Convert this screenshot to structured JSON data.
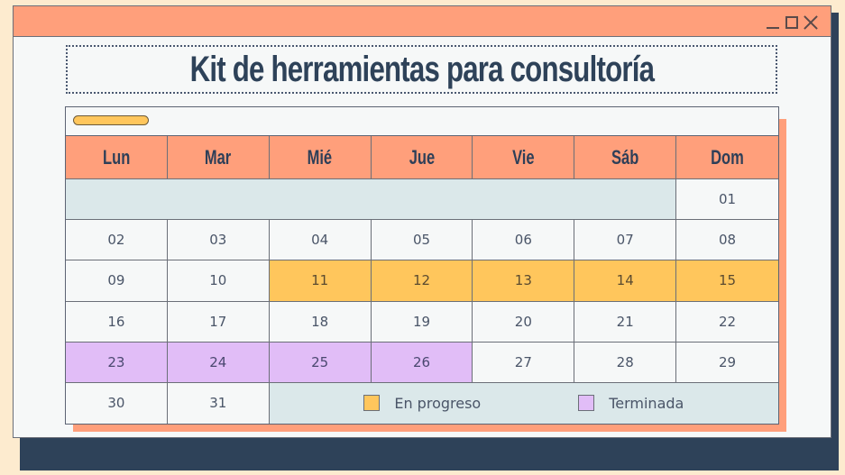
{
  "window": {
    "controls": {
      "minimize": "minimize",
      "maximize": "maximize",
      "close": "close"
    }
  },
  "title": "Kit de herramientas para consultoría",
  "calendar": {
    "headers": [
      "Lun",
      "Mar",
      "Mié",
      "Jue",
      "Vie",
      "Sáb",
      "Dom"
    ],
    "weeks": [
      [
        {
          "v": "",
          "s": "blank"
        },
        {
          "v": "",
          "s": "blank"
        },
        {
          "v": "",
          "s": "blank"
        },
        {
          "v": "",
          "s": "blank"
        },
        {
          "v": "",
          "s": "blank"
        },
        {
          "v": "",
          "s": "blank"
        },
        {
          "v": "01",
          "s": ""
        }
      ],
      [
        {
          "v": "02",
          "s": ""
        },
        {
          "v": "03",
          "s": ""
        },
        {
          "v": "04",
          "s": ""
        },
        {
          "v": "05",
          "s": ""
        },
        {
          "v": "06",
          "s": ""
        },
        {
          "v": "07",
          "s": ""
        },
        {
          "v": "08",
          "s": ""
        }
      ],
      [
        {
          "v": "09",
          "s": ""
        },
        {
          "v": "10",
          "s": ""
        },
        {
          "v": "11",
          "s": "progress"
        },
        {
          "v": "12",
          "s": "progress"
        },
        {
          "v": "13",
          "s": "progress"
        },
        {
          "v": "14",
          "s": "progress"
        },
        {
          "v": "15",
          "s": "progress"
        }
      ],
      [
        {
          "v": "16",
          "s": ""
        },
        {
          "v": "17",
          "s": ""
        },
        {
          "v": "18",
          "s": ""
        },
        {
          "v": "19",
          "s": ""
        },
        {
          "v": "20",
          "s": ""
        },
        {
          "v": "21",
          "s": ""
        },
        {
          "v": "22",
          "s": ""
        }
      ],
      [
        {
          "v": "23",
          "s": "done"
        },
        {
          "v": "24",
          "s": "done"
        },
        {
          "v": "25",
          "s": "done"
        },
        {
          "v": "26",
          "s": "done"
        },
        {
          "v": "27",
          "s": ""
        },
        {
          "v": "28",
          "s": ""
        },
        {
          "v": "29",
          "s": ""
        }
      ],
      [
        {
          "v": "30",
          "s": ""
        },
        {
          "v": "31",
          "s": ""
        }
      ]
    ],
    "legend": [
      {
        "label": "En progreso",
        "color": "#ffc65c"
      },
      {
        "label": "Terminada",
        "color": "#e1bdf7"
      }
    ]
  },
  "colors": {
    "background": "#fdebcf",
    "titlebar": "#ff9f7b",
    "navy": "#2e4259",
    "in_progress": "#ffc65c",
    "done": "#e1bdf7",
    "blank": "#dbe8ea"
  }
}
